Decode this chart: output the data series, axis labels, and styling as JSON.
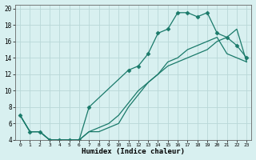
{
  "xlabel": "Humidex (Indice chaleur)",
  "bg_color": "#d8f0f0",
  "grid_color": "#b8d8d8",
  "line_color": "#1a7a6a",
  "xlim": [
    -0.5,
    23.5
  ],
  "ylim": [
    4,
    20.5
  ],
  "xticks": [
    0,
    1,
    2,
    3,
    4,
    5,
    6,
    7,
    8,
    9,
    10,
    11,
    12,
    13,
    14,
    15,
    16,
    17,
    18,
    19,
    20,
    21,
    22,
    23
  ],
  "yticks": [
    4,
    6,
    8,
    10,
    12,
    14,
    16,
    18,
    20
  ],
  "line1_x": [
    0,
    1,
    2,
    3,
    4,
    5,
    6,
    7,
    8,
    9,
    10,
    11,
    12,
    13,
    14,
    15,
    16,
    17,
    18,
    19,
    20,
    21,
    22,
    23
  ],
  "line1_y": [
    7,
    5,
    5,
    4,
    4,
    4,
    4,
    5,
    5,
    5.5,
    6,
    8,
    9.5,
    11,
    12,
    13.5,
    14,
    15,
    15.5,
    16,
    16.5,
    14.5,
    14,
    13.5
  ],
  "line2_x": [
    0,
    1,
    2,
    3,
    4,
    5,
    6,
    7,
    8,
    9,
    10,
    11,
    12,
    13,
    14,
    15,
    16,
    17,
    18,
    19,
    20,
    21,
    22,
    23
  ],
  "line2_y": [
    7,
    5,
    5,
    4,
    4,
    4,
    4,
    5,
    5.5,
    6,
    7,
    8.5,
    10,
    11,
    12,
    13,
    13.5,
    14,
    14.5,
    15,
    16,
    16.5,
    17.5,
    13.5
  ],
  "line3_x": [
    0,
    1,
    2,
    3,
    4,
    5,
    6,
    7,
    11,
    12,
    13,
    14,
    15,
    16,
    17,
    18,
    19,
    20,
    21,
    22,
    23
  ],
  "line3_y": [
    7,
    5,
    5,
    4,
    4,
    4,
    4,
    8,
    12.5,
    13,
    14.5,
    17,
    17.5,
    19.5,
    19.5,
    19,
    19.5,
    17,
    16.5,
    15.5,
    14
  ]
}
